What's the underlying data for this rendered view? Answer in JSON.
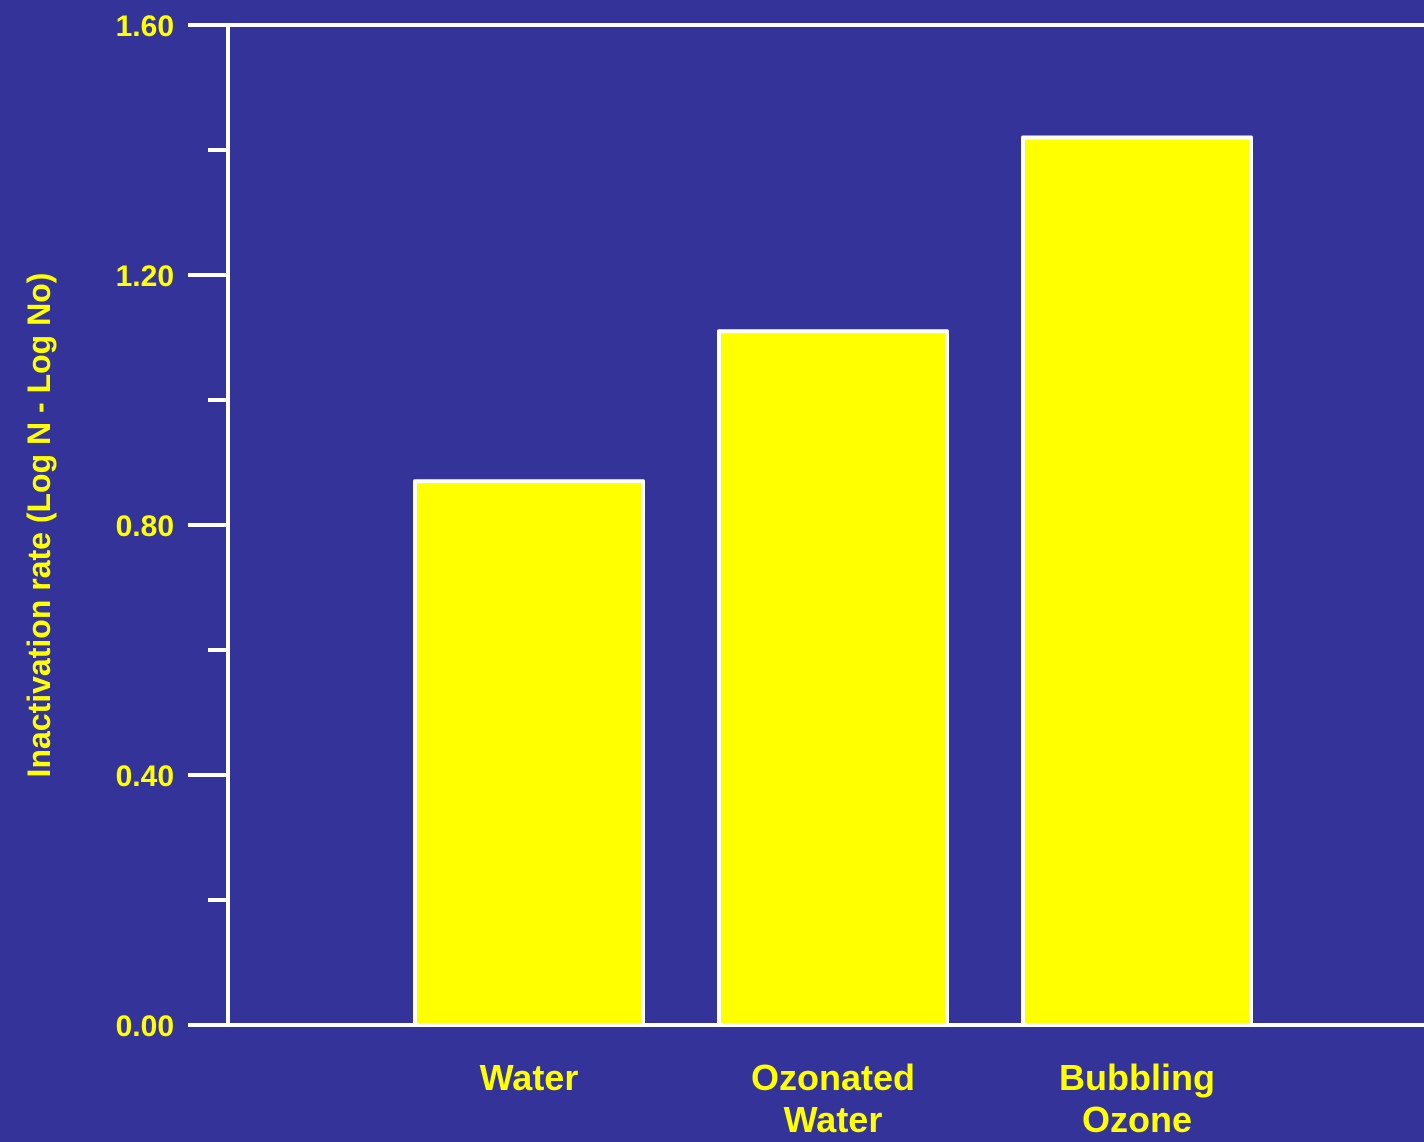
{
  "colors": {
    "background": "#333399",
    "bar_fill": "#ffff00",
    "axis": "#ffffff",
    "y_text": "#ffff00",
    "x_text": "#ffff00"
  },
  "chart_data": {
    "type": "bar",
    "categories": [
      [
        "Water"
      ],
      [
        "Ozonated",
        "Water"
      ],
      [
        "Bubbling",
        "Ozone"
      ]
    ],
    "values": [
      0.87,
      1.11,
      1.42
    ],
    "xlabel": "",
    "ylabel": "Inactivation rate (Log N - Log No)",
    "ylim": [
      0,
      1.6
    ],
    "yticks_major": [
      "0.00",
      "0.40",
      "0.80",
      "1.20",
      "1.60"
    ],
    "yticks_minor": [
      0.2,
      0.6,
      1.0,
      1.4
    ],
    "grid": false,
    "legend": "none"
  }
}
